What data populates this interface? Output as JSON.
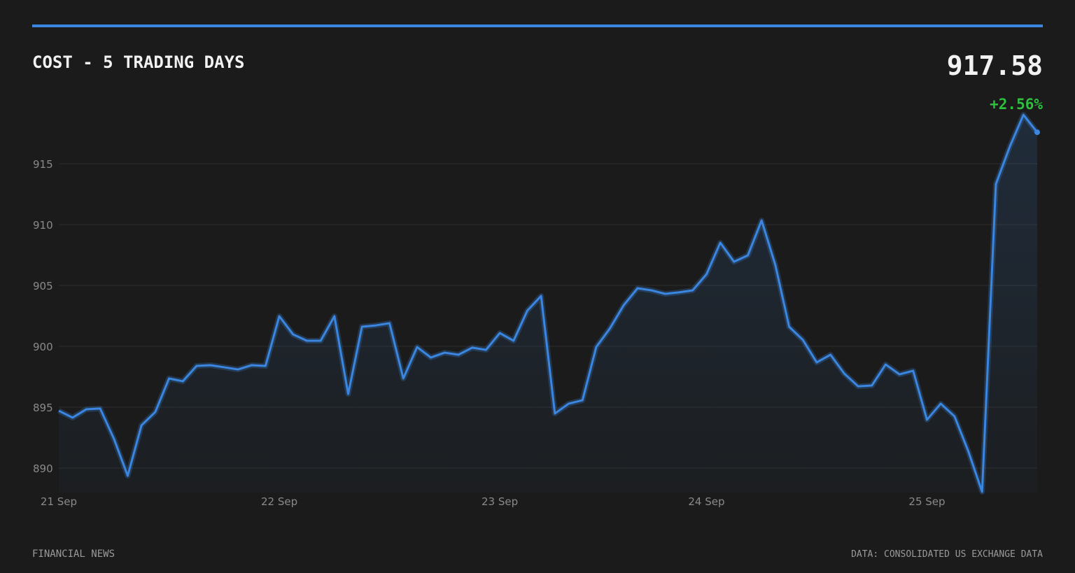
{
  "chart_data": {
    "type": "line",
    "title": "COST - 5 TRADING DAYS",
    "price": "917.58",
    "change": "+2.56%",
    "brand": "FINANCIAL NEWS",
    "source": "DATA: CONSOLIDATED US EXCHANGE DATA",
    "categories": [
      "21 Sep",
      null,
      null,
      null,
      null,
      null,
      null,
      null,
      null,
      null,
      null,
      null,
      null,
      null,
      null,
      null,
      "22 Sep",
      null,
      null,
      null,
      null,
      null,
      null,
      null,
      null,
      null,
      null,
      null,
      null,
      null,
      null,
      null,
      "23 Sep",
      null,
      null,
      null,
      null,
      null,
      null,
      null,
      null,
      null,
      null,
      null,
      null,
      null,
      null,
      "24 Sep",
      null,
      null,
      null,
      null,
      null,
      null,
      null,
      null,
      null,
      null,
      null,
      null,
      null,
      null,
      null,
      "25 Sep",
      null,
      null,
      null,
      null,
      null,
      null,
      null,
      null
    ],
    "series": [
      {
        "name": "COST",
        "color": "#3a86e0",
        "values": [
          894.71,
          894.14,
          894.83,
          894.89,
          892.41,
          889.37,
          893.51,
          894.6,
          897.36,
          897.13,
          898.39,
          898.45,
          898.28,
          898.1,
          898.45,
          898.39,
          902.47,
          900.98,
          900.46,
          900.46,
          902.47,
          896.09,
          901.61,
          901.72,
          901.9,
          897.36,
          899.94,
          899.08,
          899.48,
          899.31,
          899.89,
          899.71,
          901.09,
          900.46,
          902.93,
          904.14,
          894.48,
          895.29,
          895.57,
          899.94,
          901.49,
          903.39,
          904.77,
          904.6,
          904.31,
          904.43,
          904.6,
          905.92,
          908.51,
          906.95,
          907.47,
          910.34,
          906.67,
          901.61,
          900.52,
          898.68,
          899.31,
          897.76,
          896.72,
          896.78,
          898.51,
          897.7,
          897.99,
          893.97,
          895.29,
          894.25,
          891.38,
          888.05,
          913.33,
          916.38,
          919.02,
          917.58
        ]
      }
    ],
    "ylim": [
      888,
      919
    ],
    "yticks": [
      890,
      895,
      900,
      905,
      910,
      915
    ],
    "grid": true
  }
}
